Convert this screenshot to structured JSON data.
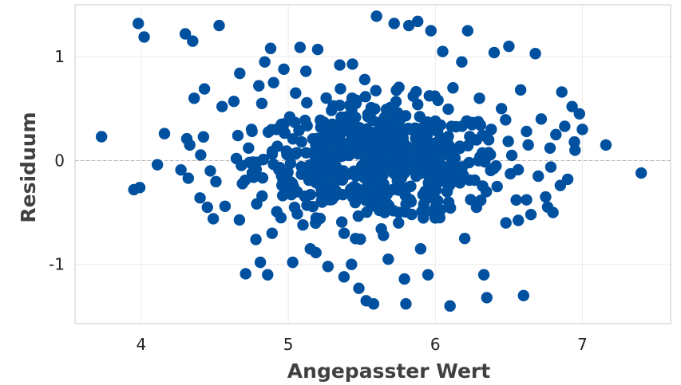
{
  "chart_data": {
    "type": "scatter",
    "title": "",
    "xlabel": "Angepasster Wert",
    "ylabel": "Residuum",
    "xlim": [
      3.55,
      7.6
    ],
    "ylim": [
      -1.57,
      1.5
    ],
    "xticks": [
      4,
      5,
      6,
      7
    ],
    "xtick_labels": [
      "4",
      "5",
      "6",
      "7"
    ],
    "yticks": [
      -1,
      0,
      1
    ],
    "ytick_labels": [
      "-1",
      "0",
      "1"
    ],
    "grid": true,
    "reference_line_y": 0,
    "colors": {
      "points": "#0050a0",
      "grid": "#ececec",
      "reference_line": "#b4b4b4",
      "frame": "#c8c8c8"
    },
    "series": [
      {
        "x": [
          3.73,
          3.95,
          3.98,
          3.99,
          4.02,
          4.11,
          4.27,
          4.3,
          4.31,
          4.32,
          4.33,
          4.35,
          4.36,
          4.4,
          4.43,
          4.45,
          4.47,
          4.49,
          4.53,
          4.55,
          4.57,
          4.63,
          4.67,
          4.71,
          4.73,
          4.75,
          4.78,
          4.8,
          4.81,
          4.82,
          4.83,
          4.84,
          4.86,
          4.88,
          4.89,
          4.9,
          4.92,
          4.95,
          4.97,
          4.99,
          5.01,
          5.03,
          5.05,
          5.06,
          5.08,
          5.09,
          5.1,
          5.12,
          5.15,
          5.2,
          5.23,
          5.25,
          5.27,
          5.3,
          5.32,
          5.35,
          5.38,
          5.4,
          5.43,
          5.46,
          5.48,
          5.5,
          5.52,
          5.53,
          5.56,
          5.58,
          5.6,
          5.62,
          5.65,
          5.68,
          5.7,
          5.72,
          5.75,
          5.77,
          5.79,
          5.8,
          5.82,
          5.85,
          5.87,
          5.88,
          5.9,
          5.92,
          5.95,
          5.97,
          6.0,
          6.03,
          6.05,
          6.08,
          6.1,
          6.12,
          6.15,
          6.18,
          6.2,
          6.22,
          6.25,
          6.28,
          6.3,
          6.33,
          6.35,
          6.38,
          6.4,
          6.42,
          6.45,
          6.48,
          6.5,
          6.52,
          6.55,
          6.58,
          6.6,
          6.62,
          6.65,
          6.68,
          6.7,
          6.72,
          6.75,
          6.78,
          6.8,
          6.82,
          6.85,
          6.86,
          6.88,
          6.9,
          6.93,
          6.95,
          6.98,
          7.0,
          7.16,
          7.4
        ],
        "y": [
          0.23,
          -0.28,
          1.32,
          -0.26,
          1.19,
          -0.04,
          -0.09,
          1.22,
          0.21,
          -0.17,
          0.15,
          1.15,
          0.6,
          -0.36,
          0.69,
          -0.45,
          -0.1,
          -0.56,
          1.3,
          0.52,
          -0.44,
          0.57,
          0.84,
          -1.09,
          0.12,
          0.3,
          -0.76,
          0.72,
          -0.98,
          0.55,
          0.01,
          0.95,
          -1.1,
          1.08,
          -0.7,
          0.75,
          0.3,
          -0.55,
          0.88,
          -0.18,
          0.42,
          -0.98,
          0.65,
          -0.3,
          1.09,
          0.18,
          -0.62,
          0.86,
          -0.85,
          1.07,
          -0.4,
          0.25,
          -1.02,
          0.35,
          -0.2,
          0.92,
          -0.7,
          0.1,
          -1.0,
          0.55,
          -1.23,
          -0.05,
          0.78,
          -1.35,
          0.2,
          -1.38,
          1.39,
          -0.48,
          0.4,
          -0.95,
          0.05,
          1.32,
          -0.6,
          0.28,
          -1.14,
          -1.38,
          1.3,
          0.62,
          -0.15,
          1.34,
          -0.85,
          0.15,
          -1.1,
          1.25,
          0.38,
          -0.55,
          1.05,
          -0.3,
          -1.4,
          0.7,
          -0.08,
          0.95,
          -0.75,
          1.25,
          0.2,
          -0.45,
          0.6,
          -1.1,
          -1.32,
          0.3,
          1.04,
          -0.25,
          0.5,
          -0.6,
          1.1,
          0.05,
          -0.38,
          0.68,
          -1.3,
          0.28,
          -0.52,
          1.03,
          -0.15,
          0.4,
          -0.35,
          0.12,
          -0.5,
          0.25,
          -0.24,
          0.66,
          0.33,
          -0.18,
          0.52,
          0.1,
          0.45,
          0.3,
          0.15,
          -0.12
        ]
      }
    ],
    "cluster": {
      "x_center": 5.62,
      "x_spread": 0.42,
      "y_spread": 0.3,
      "count": 560
    }
  }
}
